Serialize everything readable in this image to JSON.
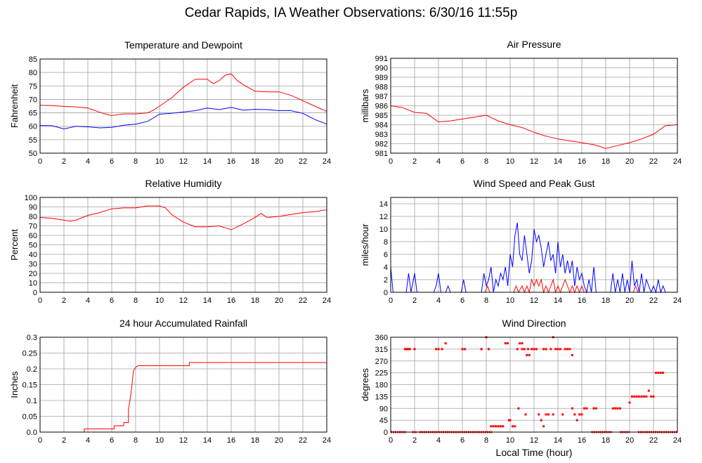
{
  "page": {
    "title": "Cedar Rapids, IA Weather Observations: 6/30/16 11:55p"
  },
  "colors": {
    "red": "#ff0000",
    "blue": "#0000ff",
    "grid": "#a0a0a0",
    "frame": "#000000"
  },
  "chart_data": [
    {
      "id": "temp",
      "type": "line",
      "title": "Temperature and Dewpoint",
      "ylabel": "Fahrenheit",
      "xlabel": "",
      "xlim": [
        0,
        24
      ],
      "ylim": [
        50,
        85
      ],
      "xticks": [
        0,
        2,
        4,
        6,
        8,
        10,
        12,
        14,
        16,
        18,
        20,
        22,
        24
      ],
      "yticks": [
        50,
        55,
        60,
        65,
        70,
        75,
        80,
        85
      ],
      "series": [
        {
          "color": "#ff0000",
          "x": [
            0,
            1,
            2,
            3,
            4,
            5,
            5.5,
            6,
            7,
            8,
            9,
            9.5,
            10,
            11,
            12,
            13,
            14,
            14.5,
            15,
            15.5,
            16,
            16.5,
            17,
            18,
            19,
            20,
            21,
            22,
            23,
            24
          ],
          "y": [
            67.8,
            67.7,
            67.4,
            67.2,
            66.8,
            65.2,
            64.5,
            64.0,
            64.6,
            64.6,
            65.0,
            66.0,
            67.5,
            70.5,
            74.5,
            77.5,
            77.5,
            75.8,
            77.0,
            79.0,
            79.5,
            77.0,
            75.5,
            73.0,
            72.8,
            72.8,
            71.5,
            69.5,
            67.5,
            65.5
          ]
        },
        {
          "color": "#0000ff",
          "x": [
            0,
            1,
            2,
            3,
            4,
            5,
            6,
            7,
            8,
            9,
            10,
            11,
            12,
            13,
            14,
            15,
            16,
            17,
            18,
            19,
            20,
            21,
            22,
            23,
            24
          ],
          "y": [
            60.3,
            60.2,
            59.0,
            60.0,
            59.8,
            59.4,
            59.6,
            60.4,
            60.8,
            61.8,
            64.5,
            64.8,
            65.3,
            65.8,
            66.8,
            66.2,
            67.0,
            66.0,
            66.3,
            66.2,
            65.8,
            65.8,
            64.8,
            62.5,
            60.8
          ]
        }
      ]
    },
    {
      "id": "pressure",
      "type": "line",
      "title": "Air Pressure",
      "ylabel": "millibars",
      "xlabel": "",
      "xlim": [
        0,
        24
      ],
      "ylim": [
        981,
        991
      ],
      "xticks": [
        0,
        2,
        4,
        6,
        8,
        10,
        12,
        14,
        16,
        18,
        20,
        22,
        24
      ],
      "yticks": [
        981,
        982,
        983,
        984,
        985,
        986,
        987,
        988,
        989,
        990,
        991
      ],
      "series": [
        {
          "color": "#ff0000",
          "x": [
            0,
            1,
            2,
            3,
            4,
            5,
            6,
            7,
            8,
            9,
            10,
            11,
            12,
            13,
            14,
            15,
            16,
            17,
            17.5,
            18,
            19,
            20,
            21,
            22,
            23,
            24
          ],
          "y": [
            986.0,
            985.8,
            985.3,
            985.2,
            984.3,
            984.4,
            984.6,
            984.8,
            985.0,
            984.4,
            984.0,
            983.7,
            983.2,
            982.8,
            982.5,
            982.3,
            982.1,
            981.9,
            981.7,
            981.5,
            981.8,
            982.1,
            982.5,
            983.0,
            983.9,
            984.0
          ]
        }
      ]
    },
    {
      "id": "rh",
      "type": "line",
      "title": "Relative Humidity",
      "ylabel": "Percent",
      "xlabel": "",
      "xlim": [
        0,
        24
      ],
      "ylim": [
        0,
        100
      ],
      "xticks": [
        0,
        2,
        4,
        6,
        8,
        10,
        12,
        14,
        16,
        18,
        20,
        22,
        24
      ],
      "yticks": [
        0,
        10,
        20,
        30,
        40,
        50,
        60,
        70,
        80,
        90,
        100
      ],
      "series": [
        {
          "color": "#ff0000",
          "x": [
            0,
            1,
            2,
            2.5,
            3,
            4,
            5,
            6,
            7,
            8,
            9,
            10,
            10.5,
            11,
            12,
            13,
            14,
            15,
            15.5,
            16,
            17,
            18,
            18.5,
            19,
            20,
            21,
            22,
            23,
            24
          ],
          "y": [
            79,
            78,
            76,
            75,
            76,
            81,
            84,
            88,
            89,
            89,
            91,
            91,
            89,
            82,
            74,
            69,
            69,
            70,
            68,
            66,
            72,
            79,
            83,
            79,
            80,
            82,
            84,
            85,
            87
          ]
        }
      ]
    },
    {
      "id": "wind",
      "type": "line",
      "title": "Wind Speed and Peak Gust",
      "ylabel": "miles/hour",
      "xlabel": "",
      "xlim": [
        0,
        24
      ],
      "ylim": [
        0,
        15
      ],
      "xticks": [
        0,
        2,
        4,
        6,
        8,
        10,
        12,
        14,
        16,
        18,
        20,
        22,
        24
      ],
      "yticks": [
        0,
        2,
        4,
        6,
        8,
        10,
        12,
        14
      ],
      "series": [
        {
          "color": "#0000ff",
          "x": [
            0,
            0.2,
            0.4,
            1.3,
            1.5,
            1.7,
            2.0,
            2.2,
            2.5,
            3.6,
            3.8,
            4.0,
            4.2,
            4.6,
            4.8,
            5.0,
            5.9,
            6.1,
            6.3,
            7.6,
            7.8,
            8.0,
            8.2,
            8.4,
            8.6,
            8.8,
            9.0,
            9.2,
            9.4,
            9.6,
            9.8,
            10.0,
            10.2,
            10.4,
            10.6,
            10.8,
            11.0,
            11.2,
            11.4,
            11.6,
            11.8,
            12.0,
            12.2,
            12.4,
            12.6,
            12.8,
            13.0,
            13.2,
            13.4,
            13.6,
            13.8,
            14.0,
            14.2,
            14.4,
            14.6,
            14.8,
            15.0,
            15.2,
            15.4,
            15.6,
            15.8,
            16.0,
            16.2,
            16.4,
            16.6,
            16.8,
            17.0,
            17.2,
            17.4,
            18.4,
            18.6,
            18.8,
            19.0,
            19.2,
            19.4,
            19.6,
            19.8,
            20.0,
            20.2,
            20.4,
            20.6,
            20.8,
            21.0,
            21.2,
            21.4,
            21.6,
            21.8,
            22.0,
            22.2,
            22.4,
            22.6,
            22.8,
            23.0,
            24.0
          ],
          "y": [
            4,
            0,
            0,
            0,
            3,
            0,
            3,
            0,
            0,
            0,
            1,
            3,
            0,
            0,
            1,
            0,
            0,
            2,
            0,
            0,
            3,
            1,
            2,
            4,
            0,
            2,
            1,
            3,
            2,
            4,
            1,
            6,
            4,
            9,
            11,
            6,
            5,
            9,
            6,
            3,
            5,
            10,
            8,
            9,
            7,
            4,
            6,
            8,
            5,
            6,
            3,
            8,
            4,
            6,
            3,
            5,
            3,
            5,
            1,
            4,
            2,
            3,
            1,
            0,
            2,
            0,
            4,
            0,
            0,
            0,
            3,
            0,
            2,
            0,
            3,
            0,
            2,
            0,
            5,
            1,
            2,
            0,
            3,
            0,
            2,
            1,
            0,
            1,
            0,
            2,
            0,
            1,
            0,
            0
          ]
        },
        {
          "color": "#ff0000",
          "x": [
            0,
            7.9,
            8.1,
            8.3,
            10.3,
            10.5,
            10.7,
            11.0,
            11.2,
            11.4,
            11.6,
            11.8,
            12.0,
            12.2,
            12.4,
            12.6,
            12.8,
            13.0,
            13.2,
            13.4,
            13.6,
            13.8,
            14.0,
            14.2,
            14.4,
            14.6,
            14.8,
            15.0,
            15.2,
            15.4,
            15.6,
            15.8,
            16.0,
            16.2,
            20.3,
            20.5,
            20.7,
            24
          ],
          "y": [
            0,
            0,
            1,
            0,
            0,
            1,
            0,
            1,
            0,
            1,
            0,
            2,
            1,
            2,
            1,
            2,
            0,
            1,
            0,
            1,
            2,
            0,
            1,
            0,
            1,
            2,
            1,
            0,
            1,
            0,
            1,
            0,
            1,
            0,
            0,
            1,
            0,
            0
          ]
        }
      ]
    },
    {
      "id": "rain",
      "type": "line",
      "title": "24 hour Accumulated Rainfall",
      "ylabel": "Inches",
      "xlabel": "",
      "xlim": [
        0,
        24
      ],
      "ylim": [
        0,
        0.3
      ],
      "xticks": [
        0,
        2,
        4,
        6,
        8,
        10,
        12,
        14,
        16,
        18,
        20,
        22,
        24
      ],
      "yticks": [
        0,
        0.05,
        0.1,
        0.15,
        0.2,
        0.25,
        0.3
      ],
      "ytick_labels": [
        "0.0",
        "0.05",
        "0.1",
        "0.15",
        "0.2",
        "0.25",
        "0.3"
      ],
      "series": [
        {
          "color": "#ff0000",
          "x": [
            0,
            3.7,
            3.7,
            6.2,
            6.2,
            7.0,
            7.0,
            7.4,
            7.4,
            7.6,
            7.7,
            7.8,
            7.9,
            8.0,
            8.2,
            8.3,
            12.5,
            12.5,
            24
          ],
          "y": [
            0,
            0,
            0.01,
            0.01,
            0.02,
            0.02,
            0.03,
            0.03,
            0.07,
            0.12,
            0.15,
            0.19,
            0.2,
            0.205,
            0.21,
            0.21,
            0.21,
            0.22,
            0.22
          ]
        }
      ]
    },
    {
      "id": "dir",
      "type": "scatter",
      "title": "Wind Direction",
      "ylabel": "degrees",
      "xlabel": "Local Time (hour)",
      "xlim": [
        0,
        24
      ],
      "ylim": [
        0,
        360
      ],
      "xticks": [
        0,
        2,
        4,
        6,
        8,
        10,
        12,
        14,
        16,
        18,
        20,
        22,
        24
      ],
      "yticks": [
        0,
        45,
        90,
        135,
        180,
        225,
        270,
        315,
        360
      ],
      "zero_bands": [
        [
          0,
          1.3
        ],
        [
          1.8,
          2.2
        ],
        [
          2.4,
          8.5
        ],
        [
          16.8,
          18.5
        ],
        [
          19.2,
          20.0
        ],
        [
          20.7,
          24
        ]
      ],
      "points": [
        [
          1.2,
          315
        ],
        [
          1.3,
          315
        ],
        [
          1.4,
          315
        ],
        [
          1.5,
          315
        ],
        [
          1.6,
          315
        ],
        [
          2.0,
          315
        ],
        [
          3.8,
          315
        ],
        [
          4.0,
          315
        ],
        [
          4.3,
          315
        ],
        [
          4.6,
          337
        ],
        [
          6.0,
          315
        ],
        [
          6.2,
          315
        ],
        [
          7.6,
          315
        ],
        [
          8.0,
          360
        ],
        [
          8.2,
          315
        ],
        [
          8.4,
          22
        ],
        [
          8.6,
          22
        ],
        [
          8.8,
          22
        ],
        [
          9.0,
          22
        ],
        [
          9.2,
          22
        ],
        [
          9.4,
          22
        ],
        [
          9.6,
          337
        ],
        [
          9.8,
          337
        ],
        [
          9.9,
          45
        ],
        [
          10.0,
          45
        ],
        [
          10.2,
          22
        ],
        [
          10.4,
          22
        ],
        [
          10.6,
          315
        ],
        [
          10.7,
          90
        ],
        [
          10.8,
          337
        ],
        [
          11.0,
          337
        ],
        [
          11.0,
          315
        ],
        [
          11.2,
          315
        ],
        [
          11.3,
          67
        ],
        [
          11.4,
          292
        ],
        [
          11.5,
          315
        ],
        [
          11.6,
          292
        ],
        [
          11.8,
          315
        ],
        [
          12.0,
          315
        ],
        [
          12.2,
          315
        ],
        [
          12.4,
          67
        ],
        [
          12.6,
          45
        ],
        [
          12.8,
          315
        ],
        [
          12.8,
          22
        ],
        [
          13.0,
          315
        ],
        [
          13.0,
          67
        ],
        [
          13.2,
          67
        ],
        [
          13.4,
          315
        ],
        [
          13.6,
          360
        ],
        [
          13.6,
          67
        ],
        [
          13.8,
          315
        ],
        [
          14.0,
          315
        ],
        [
          14.2,
          315
        ],
        [
          14.4,
          67
        ],
        [
          14.6,
          315
        ],
        [
          14.8,
          315
        ],
        [
          15.0,
          315
        ],
        [
          15.2,
          292
        ],
        [
          15.2,
          90
        ],
        [
          15.4,
          67
        ],
        [
          15.6,
          45
        ],
        [
          15.8,
          67
        ],
        [
          16.0,
          67
        ],
        [
          16.2,
          90
        ],
        [
          16.4,
          90
        ],
        [
          17.0,
          90
        ],
        [
          17.2,
          90
        ],
        [
          18.6,
          90
        ],
        [
          18.8,
          90
        ],
        [
          19.0,
          90
        ],
        [
          19.2,
          90
        ],
        [
          20.0,
          112
        ],
        [
          20.2,
          135
        ],
        [
          20.4,
          135
        ],
        [
          20.6,
          135
        ],
        [
          20.8,
          135
        ],
        [
          21.0,
          135
        ],
        [
          21.2,
          135
        ],
        [
          21.4,
          135
        ],
        [
          21.6,
          157
        ],
        [
          21.8,
          135
        ],
        [
          22.0,
          135
        ],
        [
          22.2,
          225
        ],
        [
          22.4,
          225
        ],
        [
          22.6,
          225
        ],
        [
          22.8,
          225
        ]
      ]
    }
  ]
}
